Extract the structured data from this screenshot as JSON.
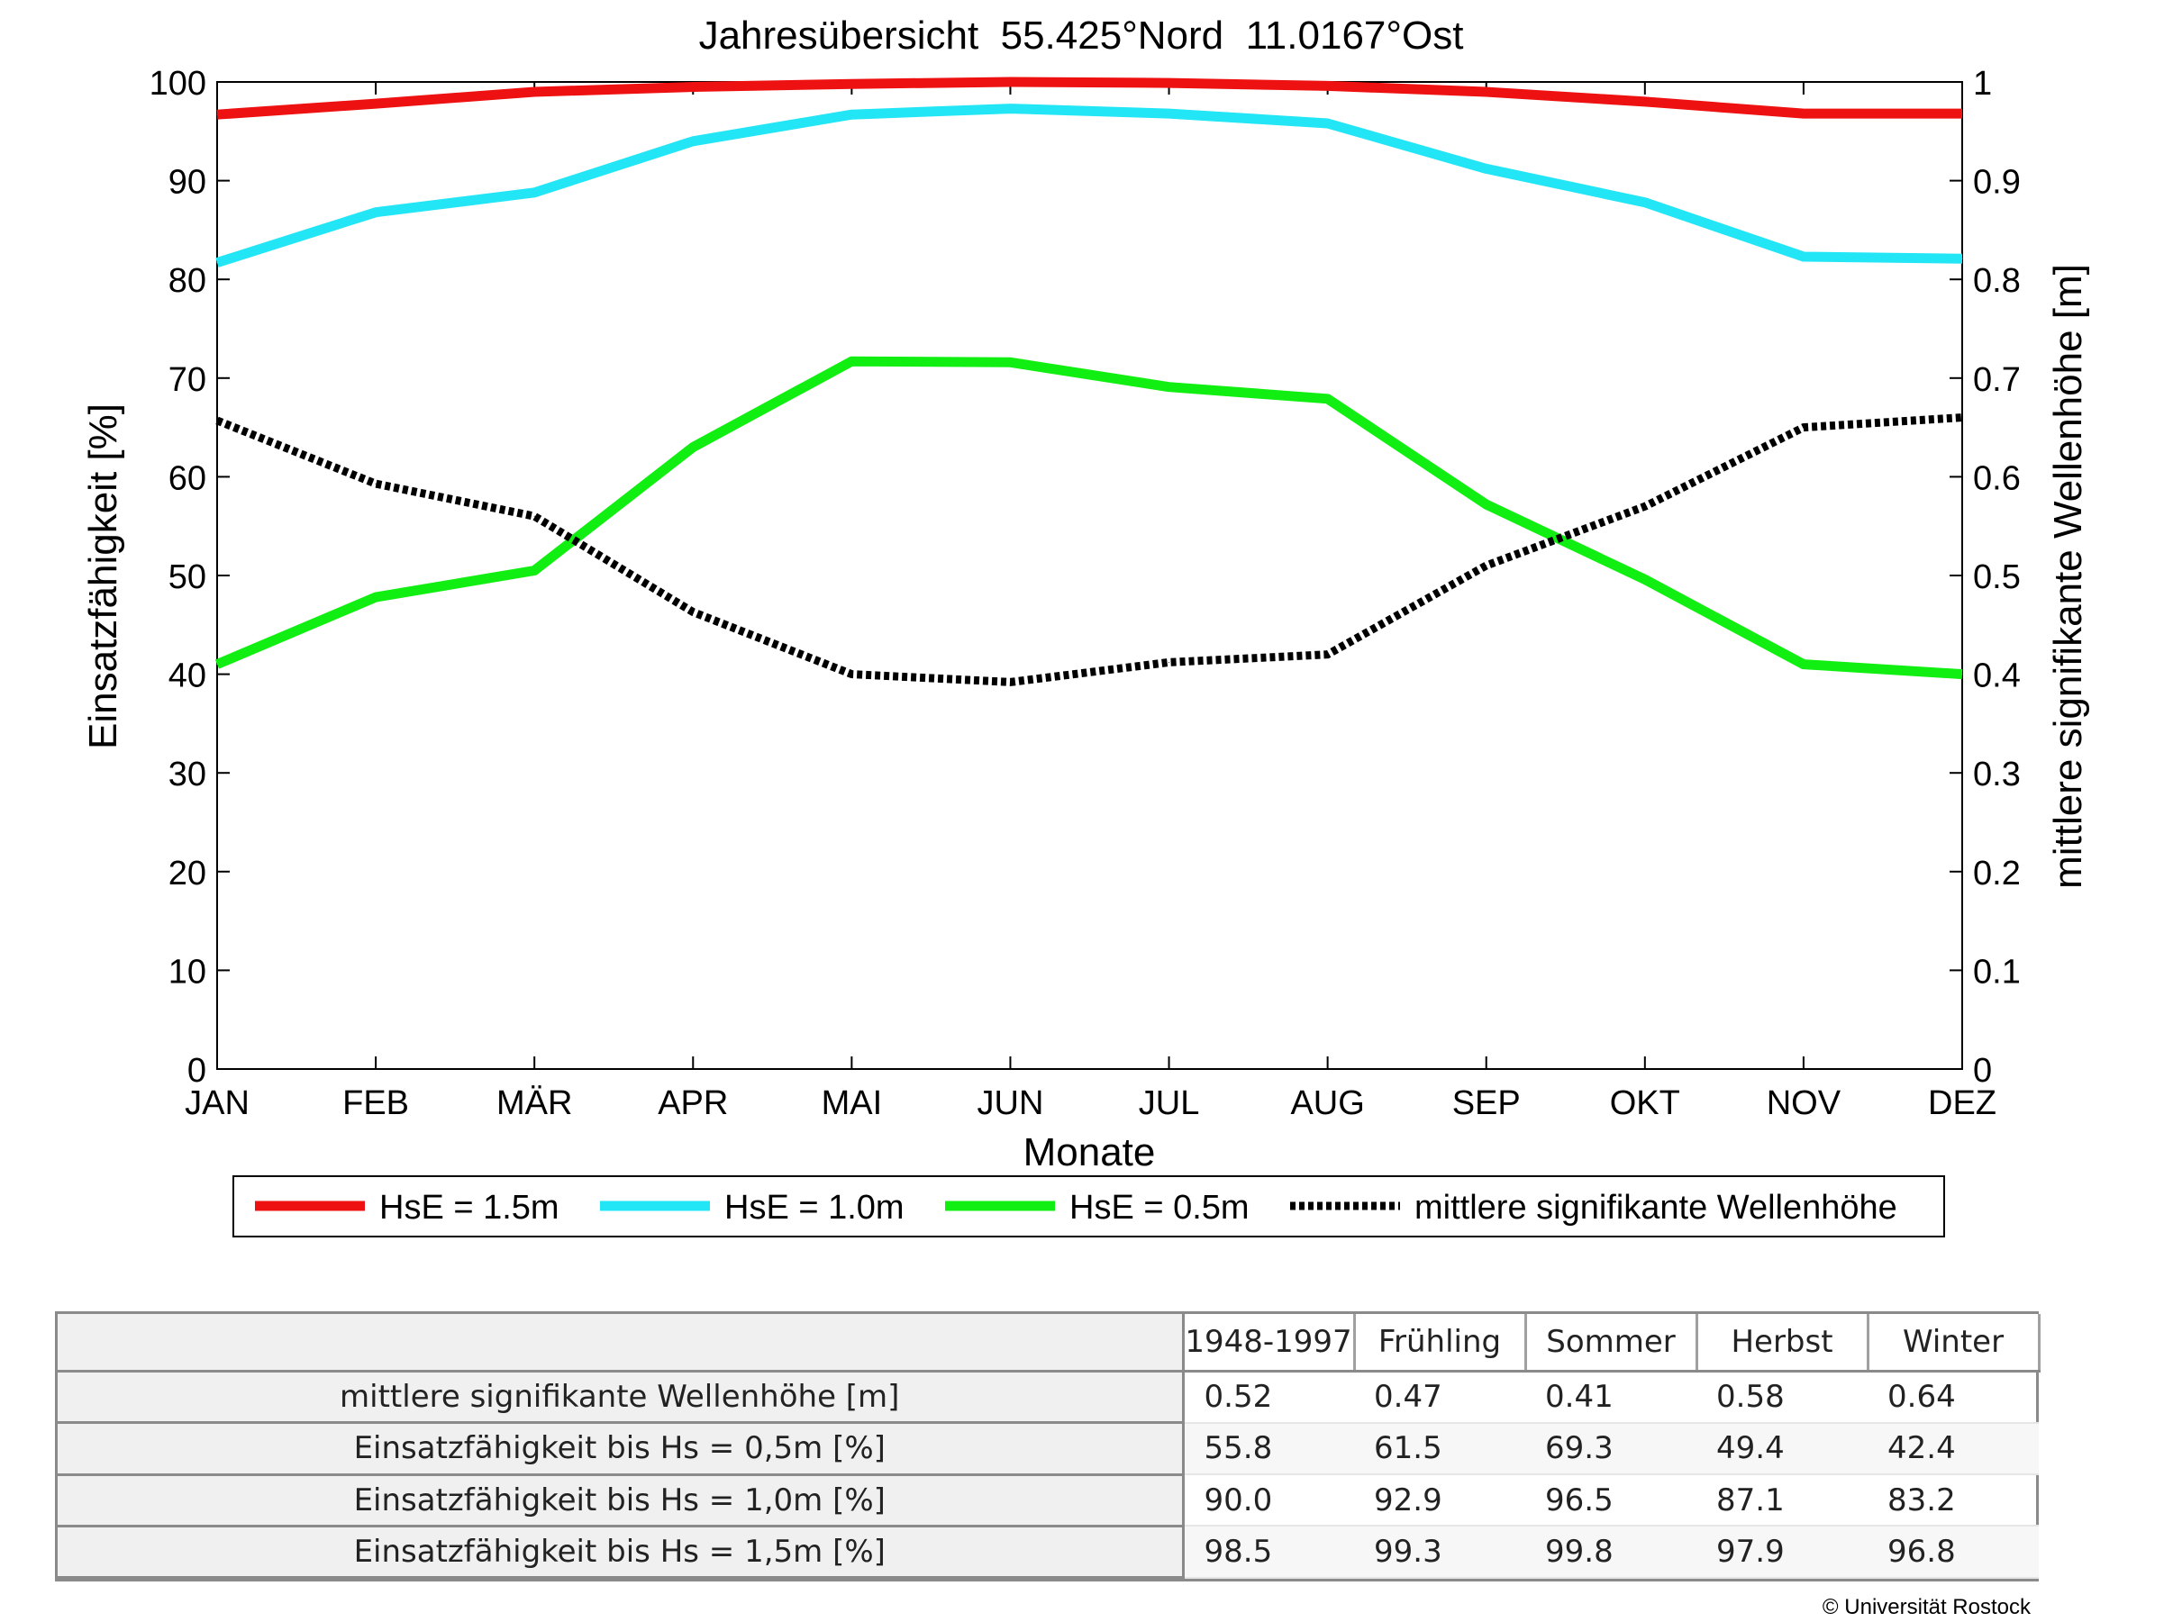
{
  "chart_data": {
    "type": "line",
    "title": "Jahresübersicht  55.425°Nord  11.0167°Ost",
    "xlabel": "Monate",
    "ylabel_left": "Einsatzfähigkeit [%]",
    "ylabel_right": "mittlere signifikante Wellenhöhe [m]",
    "categories": [
      "JAN",
      "FEB",
      "MÄR",
      "APR",
      "MAI",
      "JUN",
      "JUL",
      "AUG",
      "SEP",
      "OKT",
      "NOV",
      "DEZ"
    ],
    "ylim_left": [
      0,
      100
    ],
    "ylim_right": [
      0,
      1
    ],
    "yticks_left": [
      "0",
      "10",
      "20",
      "30",
      "40",
      "50",
      "60",
      "70",
      "80",
      "90",
      "100"
    ],
    "yticks_right": [
      "0",
      "0.1",
      "0.2",
      "0.3",
      "0.4",
      "0.5",
      "0.6",
      "0.7",
      "0.8",
      "0.9",
      "1"
    ],
    "grid": false,
    "legend_position": "bottom",
    "series": [
      {
        "name": "HsE = 1.5m",
        "axis": "left",
        "color": "#ee1111",
        "style": "solid",
        "values": [
          96.7,
          97.8,
          99.0,
          99.5,
          99.8,
          100.0,
          99.9,
          99.6,
          99.0,
          98.0,
          96.8,
          96.8
        ]
      },
      {
        "name": "HsE = 1.0m",
        "axis": "left",
        "color": "#22e5f5",
        "style": "solid",
        "values": [
          81.7,
          86.8,
          88.8,
          94.0,
          96.7,
          97.3,
          96.8,
          95.8,
          91.2,
          87.8,
          82.3,
          82.1
        ]
      },
      {
        "name": "HsE = 0.5m",
        "axis": "left",
        "color": "#11ee11",
        "style": "solid",
        "values": [
          41.0,
          47.8,
          50.5,
          63.0,
          71.7,
          71.6,
          69.1,
          67.9,
          57.2,
          49.6,
          41.0,
          40.0
        ]
      },
      {
        "name": "mittlere signifikante Wellenhöhe",
        "axis": "right",
        "color": "#000000",
        "style": "dotted",
        "values": [
          0.657,
          0.593,
          0.56,
          0.463,
          0.4,
          0.392,
          0.412,
          0.42,
          0.51,
          0.57,
          0.65,
          0.66
        ]
      }
    ]
  },
  "table": {
    "headers": [
      "",
      "1948-1997",
      "Frühling",
      "Sommer",
      "Herbst",
      "Winter"
    ],
    "rows": [
      {
        "label": "mittlere signifikante Wellenhöhe [m]",
        "values": [
          "0.52",
          "0.47",
          "0.41",
          "0.58",
          "0.64"
        ]
      },
      {
        "label": "Einsatzfähigkeit bis Hs = 0,5m [%]",
        "values": [
          "55.8",
          "61.5",
          "69.3",
          "49.4",
          "42.4"
        ]
      },
      {
        "label": "Einsatzfähigkeit bis Hs = 1,0m [%]",
        "values": [
          "90.0",
          "92.9",
          "96.5",
          "87.1",
          "83.2"
        ]
      },
      {
        "label": "Einsatzfähigkeit bis Hs = 1,5m [%]",
        "values": [
          "98.5",
          "99.3",
          "99.8",
          "97.9",
          "96.8"
        ]
      }
    ]
  },
  "footer": {
    "copyright": "© Universität Rostock"
  }
}
